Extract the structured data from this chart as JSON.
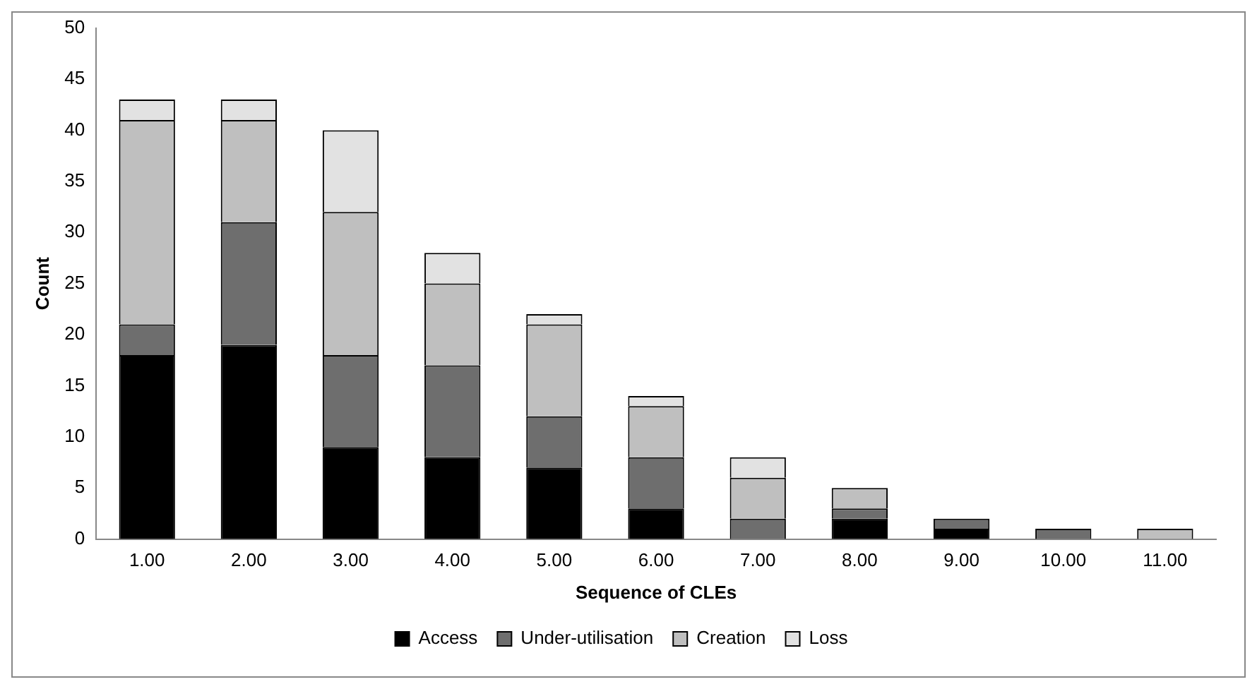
{
  "chart_data": {
    "type": "bar",
    "stacked": true,
    "xlabel": "Sequence of CLEs",
    "ylabel": "Count",
    "categories": [
      "1.00",
      "2.00",
      "3.00",
      "4.00",
      "5.00",
      "6.00",
      "7.00",
      "8.00",
      "9.00",
      "10.00",
      "11.00"
    ],
    "series": [
      {
        "name": "Access",
        "color": "#000000",
        "values": [
          18,
          19,
          9,
          8,
          7,
          3,
          0,
          2,
          1,
          0,
          0
        ]
      },
      {
        "name": "Under-utilisation",
        "color": "#6e6e6e",
        "values": [
          3,
          12,
          9,
          9,
          5,
          5,
          2,
          1,
          1,
          1,
          0
        ]
      },
      {
        "name": "Creation",
        "color": "#bfbfbf",
        "values": [
          20,
          10,
          14,
          8,
          9,
          5,
          4,
          2,
          0,
          0,
          1
        ]
      },
      {
        "name": "Loss",
        "color": "#e2e2e2",
        "values": [
          2,
          2,
          8,
          3,
          1,
          1,
          2,
          0,
          0,
          0,
          0
        ]
      }
    ],
    "ylim": [
      0,
      50
    ],
    "yticks": [
      0,
      5,
      10,
      15,
      20,
      25,
      30,
      35,
      40,
      45,
      50
    ],
    "grid": false,
    "legend": "bottom"
  }
}
